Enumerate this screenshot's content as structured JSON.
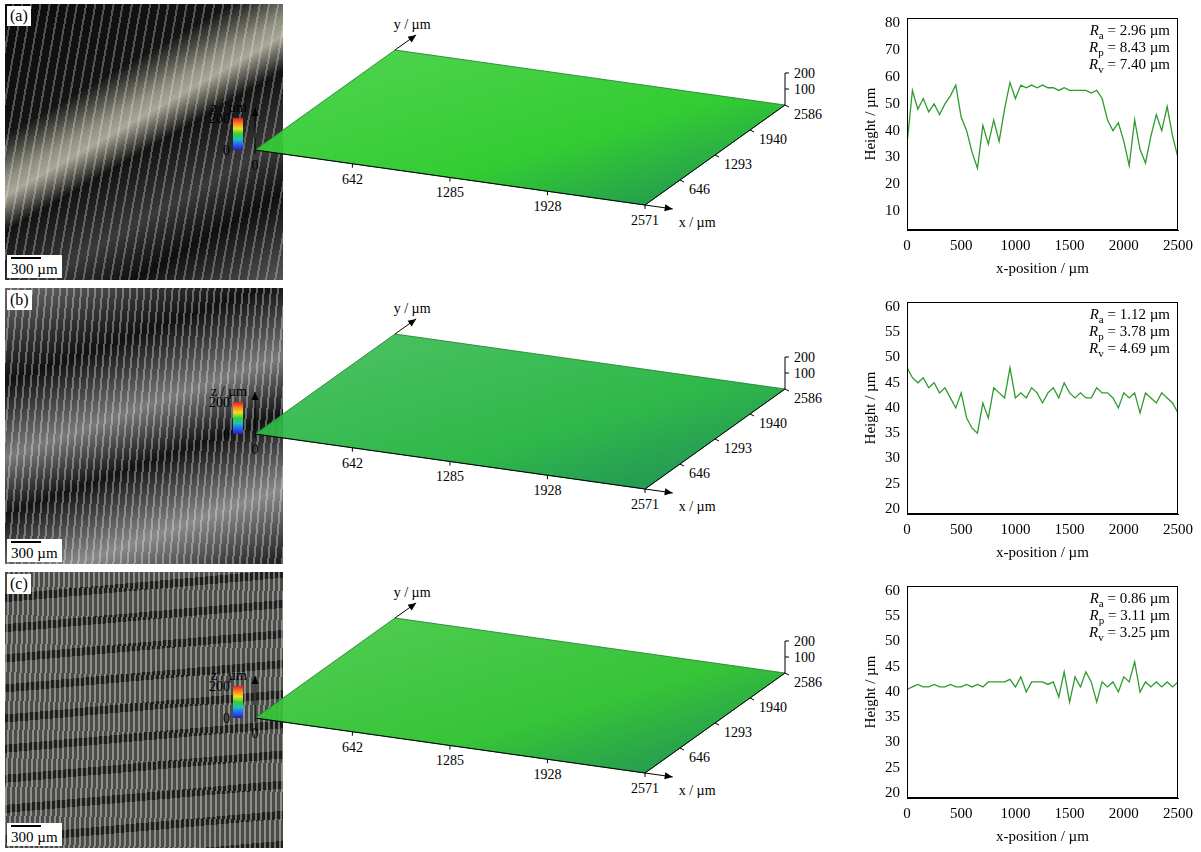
{
  "panels": [
    {
      "label": "(a)",
      "micrograph": {
        "scale_bar": "300 µm"
      },
      "surface": {
        "type": "surface",
        "x_label": "x / µm",
        "y_label": "y / µm",
        "z_label": "z / µm",
        "xlim": [
          0,
          2571
        ],
        "xticks": [
          0,
          642,
          1285,
          1928,
          2571
        ],
        "ylim": [
          0,
          2586
        ],
        "yticks": [
          646,
          1293,
          1940,
          2586
        ],
        "zlim": [
          0,
          200
        ],
        "zticks": [
          100,
          200
        ],
        "colorbar": {
          "range": [
            0,
            200
          ],
          "ticks": [
            0,
            200
          ]
        },
        "color": "#33cc33"
      }
    },
    {
      "label": "(b)",
      "micrograph": {
        "scale_bar": "300 µm"
      },
      "surface": {
        "type": "surface",
        "x_label": "x / µm",
        "y_label": "y / µm",
        "z_label": "z / µm",
        "xlim": [
          0,
          2571
        ],
        "xticks": [
          0,
          642,
          1285,
          1928,
          2571
        ],
        "ylim": [
          0,
          2586
        ],
        "yticks": [
          646,
          1293,
          1940,
          2586
        ],
        "zlim": [
          0,
          200
        ],
        "zticks": [
          100,
          200
        ],
        "colorbar": {
          "range": [
            0,
            200
          ],
          "ticks": [
            0,
            200
          ]
        },
        "color": "#2fb84a"
      }
    },
    {
      "label": "(c)",
      "micrograph": {
        "scale_bar": "300 µm"
      },
      "surface": {
        "type": "surface",
        "x_label": "x / µm",
        "y_label": "y / µm",
        "z_label": "z / µm",
        "xlim": [
          0,
          2571
        ],
        "xticks": [
          0,
          642,
          1285,
          1928,
          2571
        ],
        "ylim": [
          0,
          2586
        ],
        "yticks": [
          646,
          1293,
          1940,
          2586
        ],
        "zlim": [
          0,
          200
        ],
        "zticks": [
          100,
          200
        ],
        "colorbar": {
          "range": [
            0,
            200
          ],
          "ticks": [
            0,
            200
          ]
        },
        "color": "#36c438"
      }
    }
  ],
  "chart_data": [
    {
      "type": "line",
      "x_label": "x-position / µm",
      "y_label": "Height / µm",
      "color": "#2e9b2e",
      "grid": false,
      "xlim": [
        0,
        2500
      ],
      "xticks": [
        0,
        500,
        1000,
        1500,
        2000,
        2500
      ],
      "ylim": [
        3,
        82
      ],
      "yticks": [
        10,
        20,
        30,
        40,
        50,
        60,
        70,
        80
      ],
      "annotations": [
        {
          "symbol": "R",
          "subscript": "a",
          "text": " = 2.96 µm"
        },
        {
          "symbol": "R",
          "subscript": "p",
          "text": " = 8.43 µm"
        },
        {
          "symbol": "R",
          "subscript": "v",
          "text": " = 7.40 µm"
        }
      ],
      "x": [
        0,
        50,
        100,
        150,
        200,
        250,
        300,
        350,
        400,
        450,
        500,
        550,
        600,
        650,
        700,
        750,
        800,
        850,
        900,
        950,
        1000,
        1050,
        1100,
        1150,
        1200,
        1250,
        1300,
        1350,
        1400,
        1450,
        1500,
        1550,
        1600,
        1650,
        1700,
        1750,
        1800,
        1850,
        1900,
        1950,
        2000,
        2050,
        2100,
        2150,
        2200,
        2250,
        2300,
        2350,
        2400,
        2450,
        2500
      ],
      "values": [
        35,
        55,
        48,
        52,
        47,
        50,
        46,
        50,
        53,
        57,
        45,
        40,
        32,
        26,
        42,
        35,
        44,
        36,
        48,
        58,
        52,
        57,
        56,
        57,
        56,
        57,
        56,
        56,
        55,
        56,
        55,
        55,
        55,
        55,
        54,
        55,
        52,
        44,
        40,
        43,
        36,
        27,
        44,
        33,
        28,
        38,
        46,
        40,
        49,
        38,
        30
      ]
    },
    {
      "type": "line",
      "x_label": "x-position / µm",
      "y_label": "Height / µm",
      "color": "#2e9b2e",
      "grid": false,
      "xlim": [
        0,
        2500
      ],
      "xticks": [
        0,
        500,
        1000,
        1500,
        2000,
        2500
      ],
      "ylim": [
        19,
        61
      ],
      "yticks": [
        20,
        25,
        30,
        35,
        40,
        45,
        50,
        55,
        60
      ],
      "annotations": [
        {
          "symbol": "R",
          "subscript": "a",
          "text": " = 1.12 µm"
        },
        {
          "symbol": "R",
          "subscript": "p",
          "text": " = 3.78 µm"
        },
        {
          "symbol": "R",
          "subscript": "v",
          "text": " = 4.69 µm"
        }
      ],
      "x": [
        0,
        50,
        100,
        150,
        200,
        250,
        300,
        350,
        400,
        450,
        500,
        550,
        600,
        650,
        700,
        750,
        800,
        850,
        900,
        950,
        1000,
        1050,
        1100,
        1150,
        1200,
        1250,
        1300,
        1350,
        1400,
        1450,
        1500,
        1550,
        1600,
        1650,
        1700,
        1750,
        1800,
        1850,
        1900,
        1950,
        2000,
        2050,
        2100,
        2150,
        2200,
        2250,
        2300,
        2350,
        2400,
        2450,
        2500
      ],
      "values": [
        48,
        46,
        45,
        46,
        44,
        45,
        43,
        44,
        42,
        40,
        43,
        38,
        36,
        35,
        41,
        38,
        44,
        43,
        42,
        48,
        42,
        43,
        42,
        44,
        43,
        41,
        43,
        44,
        42,
        45,
        43,
        42,
        43,
        42,
        42,
        44,
        43,
        43,
        42,
        40,
        43,
        42,
        43,
        39,
        43,
        42,
        41,
        43,
        42,
        41,
        39
      ]
    },
    {
      "type": "line",
      "x_label": "x-position / µm",
      "y_label": "Height / µm",
      "color": "#2e9b2e",
      "grid": false,
      "xlim": [
        0,
        2500
      ],
      "xticks": [
        0,
        500,
        1000,
        1500,
        2000,
        2500
      ],
      "ylim": [
        19,
        61
      ],
      "yticks": [
        20,
        25,
        30,
        35,
        40,
        45,
        50,
        55,
        60
      ],
      "annotations": [
        {
          "symbol": "R",
          "subscript": "a",
          "text": " = 0.86 µm"
        },
        {
          "symbol": "R",
          "subscript": "p",
          "text": " = 3.11 µm"
        },
        {
          "symbol": "R",
          "subscript": "v",
          "text": " = 3.25 µm"
        }
      ],
      "x": [
        0,
        50,
        100,
        150,
        200,
        250,
        300,
        350,
        400,
        450,
        500,
        550,
        600,
        650,
        700,
        750,
        800,
        850,
        900,
        950,
        1000,
        1050,
        1100,
        1150,
        1200,
        1250,
        1300,
        1350,
        1400,
        1450,
        1500,
        1550,
        1600,
        1650,
        1700,
        1750,
        1800,
        1850,
        1900,
        1950,
        2000,
        2050,
        2100,
        2150,
        2200,
        2250,
        2300,
        2350,
        2400,
        2450,
        2500
      ],
      "values": [
        40.5,
        41,
        41.5,
        41,
        41,
        41.5,
        41,
        41,
        41.5,
        41,
        41,
        41.5,
        41,
        41.5,
        41,
        42,
        42,
        42,
        42,
        42.5,
        41,
        43,
        40,
        42,
        42,
        42,
        41.5,
        42,
        39,
        44,
        38,
        43,
        41,
        44,
        42,
        38,
        42,
        41,
        42,
        40,
        43,
        42,
        46,
        40,
        42,
        41,
        42,
        41,
        42,
        41,
        42
      ]
    }
  ]
}
